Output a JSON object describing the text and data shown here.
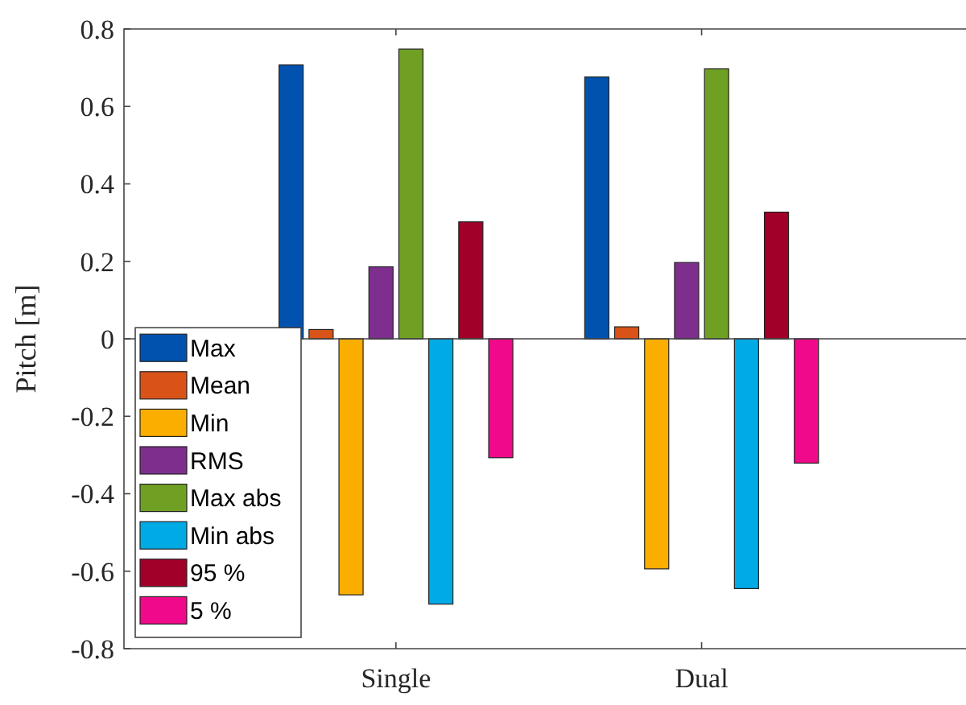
{
  "chart_data": {
    "type": "bar",
    "ylabel": "Pitch [m]",
    "categories": [
      "Single",
      "Dual"
    ],
    "series": [
      {
        "name": "Max",
        "color": "#0052ae",
        "values": [
          0.707,
          0.676
        ]
      },
      {
        "name": "Mean",
        "color": "#d95319",
        "values": [
          0.024,
          0.031
        ]
      },
      {
        "name": "Min",
        "color": "#fbae00",
        "values": [
          -0.661,
          -0.594
        ]
      },
      {
        "name": "RMS",
        "color": "#7e2f8e",
        "values": [
          0.186,
          0.197
        ]
      },
      {
        "name": "Max abs",
        "color": "#6fa024",
        "values": [
          0.748,
          0.697
        ]
      },
      {
        "name": "Min abs",
        "color": "#00aae5",
        "values": [
          -0.685,
          -0.645
        ]
      },
      {
        "name": "95 %",
        "color": "#a10029",
        "values": [
          0.302,
          0.327
        ]
      },
      {
        "name": "5 %",
        "color": "#f0098a",
        "values": [
          -0.307,
          -0.321
        ]
      }
    ],
    "ylim": [
      -0.8,
      0.8
    ],
    "yticks": [
      -0.8,
      -0.6,
      -0.4,
      -0.2,
      0,
      0.2,
      0.4,
      0.6,
      0.8
    ],
    "legend": "bottom left"
  }
}
